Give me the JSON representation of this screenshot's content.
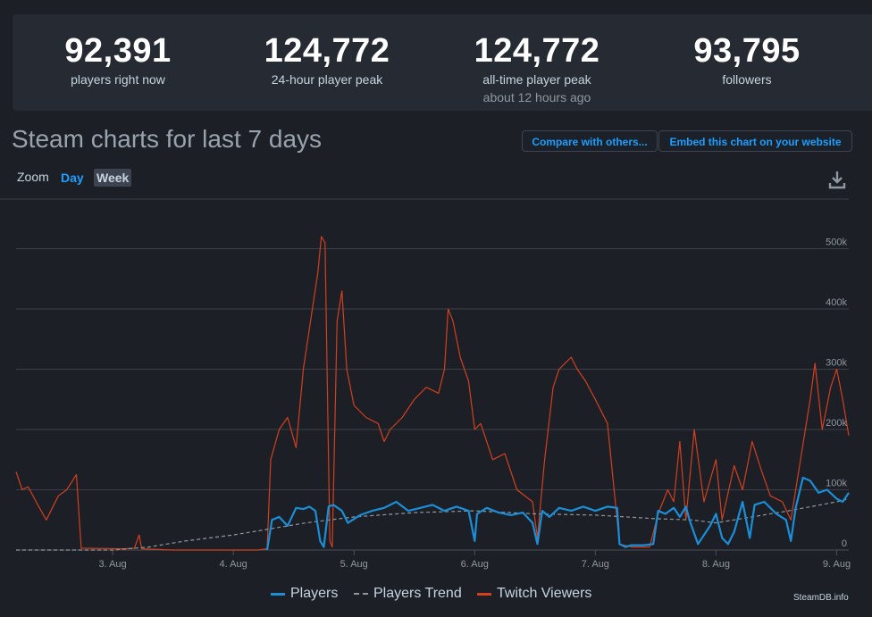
{
  "stats": [
    {
      "value": "92,391",
      "label": "players right now",
      "sub": ""
    },
    {
      "value": "124,772",
      "label": "24-hour player peak",
      "sub": ""
    },
    {
      "value": "124,772",
      "label": "all-time player peak",
      "sub": "about 12 hours ago"
    },
    {
      "value": "93,795",
      "label": "followers",
      "sub": ""
    }
  ],
  "header": {
    "title": "Steam charts for last 7 days",
    "compare_label": "Compare with others...",
    "embed_label": "Embed this chart on your website"
  },
  "zoom": {
    "label": "Zoom",
    "day": "Day",
    "week": "Week",
    "active": "Week"
  },
  "credit": "SteamDB.info",
  "colors": {
    "players": "#1a8fd8",
    "trend": "#8f98a0",
    "twitch": "#d2401f",
    "accent": "#1a9fff"
  },
  "chart_data": {
    "type": "line",
    "x_unit": "date (August, day of month)",
    "xlim": [
      2.2,
      9.1
    ],
    "ylim": [
      0,
      520000
    ],
    "y_ticks": [
      0,
      100000,
      200000,
      300000,
      400000,
      500000
    ],
    "y_tick_labels": [
      "0",
      "100k",
      "200k",
      "300k",
      "400k",
      "500k"
    ],
    "x_ticks": [
      3,
      4,
      5,
      6,
      7,
      8,
      9
    ],
    "x_tick_labels": [
      "3. Aug",
      "4. Aug",
      "5. Aug",
      "6. Aug",
      "7. Aug",
      "8. Aug",
      "9. Aug"
    ],
    "grid": true,
    "legend": "bottom",
    "series": [
      {
        "name": "Players",
        "points": [
          [
            4.28,
            0
          ],
          [
            4.32,
            50000
          ],
          [
            4.38,
            55000
          ],
          [
            4.45,
            40000
          ],
          [
            4.52,
            70000
          ],
          [
            4.58,
            68000
          ],
          [
            4.63,
            72000
          ],
          [
            4.68,
            65000
          ],
          [
            4.72,
            15000
          ],
          [
            4.75,
            5000
          ],
          [
            4.79,
            72000
          ],
          [
            4.83,
            75000
          ],
          [
            4.9,
            65000
          ],
          [
            4.95,
            45000
          ],
          [
            5.05,
            58000
          ],
          [
            5.15,
            65000
          ],
          [
            5.25,
            70000
          ],
          [
            5.35,
            80000
          ],
          [
            5.45,
            65000
          ],
          [
            5.55,
            70000
          ],
          [
            5.65,
            75000
          ],
          [
            5.75,
            65000
          ],
          [
            5.85,
            72000
          ],
          [
            5.95,
            65000
          ],
          [
            6.0,
            15000
          ],
          [
            6.02,
            60000
          ],
          [
            6.1,
            70000
          ],
          [
            6.2,
            62000
          ],
          [
            6.3,
            58000
          ],
          [
            6.4,
            62000
          ],
          [
            6.48,
            45000
          ],
          [
            6.52,
            10000
          ],
          [
            6.56,
            65000
          ],
          [
            6.62,
            55000
          ],
          [
            6.7,
            70000
          ],
          [
            6.8,
            65000
          ],
          [
            6.9,
            72000
          ],
          [
            7.0,
            65000
          ],
          [
            7.1,
            72000
          ],
          [
            7.18,
            70000
          ],
          [
            7.2,
            10000
          ],
          [
            7.25,
            5000
          ],
          [
            7.3,
            8000
          ],
          [
            7.4,
            8000
          ],
          [
            7.48,
            10000
          ],
          [
            7.52,
            65000
          ],
          [
            7.58,
            60000
          ],
          [
            7.65,
            70000
          ],
          [
            7.7,
            55000
          ],
          [
            7.75,
            72000
          ],
          [
            7.78,
            50000
          ],
          [
            7.85,
            10000
          ],
          [
            7.95,
            40000
          ],
          [
            8.0,
            60000
          ],
          [
            8.05,
            20000
          ],
          [
            8.1,
            10000
          ],
          [
            8.15,
            30000
          ],
          [
            8.22,
            80000
          ],
          [
            8.28,
            20000
          ],
          [
            8.32,
            75000
          ],
          [
            8.4,
            80000
          ],
          [
            8.5,
            60000
          ],
          [
            8.58,
            50000
          ],
          [
            8.62,
            15000
          ],
          [
            8.66,
            70000
          ],
          [
            8.72,
            120000
          ],
          [
            8.78,
            115000
          ],
          [
            8.85,
            95000
          ],
          [
            8.92,
            100000
          ],
          [
            9.0,
            85000
          ],
          [
            9.05,
            80000
          ],
          [
            9.1,
            95000
          ]
        ]
      },
      {
        "name": "Players Trend",
        "points": [
          [
            2.2,
            0
          ],
          [
            3.0,
            0
          ],
          [
            3.3,
            5000
          ],
          [
            3.6,
            15000
          ],
          [
            4.0,
            25000
          ],
          [
            4.3,
            35000
          ],
          [
            4.6,
            45000
          ],
          [
            5.0,
            55000
          ],
          [
            5.5,
            62000
          ],
          [
            6.0,
            65000
          ],
          [
            6.5,
            60000
          ],
          [
            7.0,
            58000
          ],
          [
            7.5,
            52000
          ],
          [
            7.8,
            50000
          ],
          [
            8.0,
            45000
          ],
          [
            8.3,
            55000
          ],
          [
            8.6,
            65000
          ],
          [
            9.0,
            80000
          ],
          [
            9.1,
            85000
          ]
        ]
      },
      {
        "name": "Twitch Viewers",
        "points": [
          [
            2.2,
            130000
          ],
          [
            2.25,
            100000
          ],
          [
            2.3,
            105000
          ],
          [
            2.38,
            75000
          ],
          [
            2.45,
            50000
          ],
          [
            2.55,
            90000
          ],
          [
            2.62,
            100000
          ],
          [
            2.7,
            125000
          ],
          [
            2.74,
            3000
          ],
          [
            3.1,
            2000
          ],
          [
            3.18,
            3000
          ],
          [
            3.22,
            25000
          ],
          [
            3.24,
            2000
          ],
          [
            3.5,
            0
          ],
          [
            4.2,
            0
          ],
          [
            4.28,
            2000
          ],
          [
            4.31,
            150000
          ],
          [
            4.38,
            200000
          ],
          [
            4.45,
            220000
          ],
          [
            4.52,
            170000
          ],
          [
            4.58,
            300000
          ],
          [
            4.64,
            380000
          ],
          [
            4.7,
            460000
          ],
          [
            4.73,
            520000
          ],
          [
            4.76,
            510000
          ],
          [
            4.8,
            15000
          ],
          [
            4.82,
            5000
          ],
          [
            4.86,
            380000
          ],
          [
            4.9,
            430000
          ],
          [
            4.94,
            300000
          ],
          [
            5.0,
            240000
          ],
          [
            5.1,
            220000
          ],
          [
            5.2,
            210000
          ],
          [
            5.25,
            180000
          ],
          [
            5.3,
            200000
          ],
          [
            5.4,
            220000
          ],
          [
            5.5,
            250000
          ],
          [
            5.6,
            270000
          ],
          [
            5.7,
            260000
          ],
          [
            5.75,
            300000
          ],
          [
            5.78,
            400000
          ],
          [
            5.82,
            380000
          ],
          [
            5.88,
            320000
          ],
          [
            5.95,
            280000
          ],
          [
            6.0,
            200000
          ],
          [
            6.05,
            210000
          ],
          [
            6.15,
            150000
          ],
          [
            6.25,
            160000
          ],
          [
            6.35,
            100000
          ],
          [
            6.48,
            80000
          ],
          [
            6.52,
            20000
          ],
          [
            6.58,
            150000
          ],
          [
            6.65,
            270000
          ],
          [
            6.7,
            300000
          ],
          [
            6.8,
            320000
          ],
          [
            6.85,
            300000
          ],
          [
            6.92,
            280000
          ],
          [
            7.0,
            250000
          ],
          [
            7.1,
            210000
          ],
          [
            7.2,
            10000
          ],
          [
            7.3,
            5000
          ],
          [
            7.45,
            5000
          ],
          [
            7.52,
            60000
          ],
          [
            7.6,
            100000
          ],
          [
            7.65,
            80000
          ],
          [
            7.7,
            180000
          ],
          [
            7.75,
            50000
          ],
          [
            7.82,
            200000
          ],
          [
            7.9,
            80000
          ],
          [
            8.0,
            150000
          ],
          [
            8.05,
            50000
          ],
          [
            8.15,
            140000
          ],
          [
            8.22,
            100000
          ],
          [
            8.3,
            180000
          ],
          [
            8.38,
            130000
          ],
          [
            8.45,
            90000
          ],
          [
            8.55,
            80000
          ],
          [
            8.62,
            50000
          ],
          [
            8.7,
            150000
          ],
          [
            8.78,
            250000
          ],
          [
            8.82,
            310000
          ],
          [
            8.88,
            200000
          ],
          [
            8.95,
            270000
          ],
          [
            9.0,
            300000
          ],
          [
            9.05,
            250000
          ],
          [
            9.1,
            190000
          ]
        ]
      }
    ]
  }
}
